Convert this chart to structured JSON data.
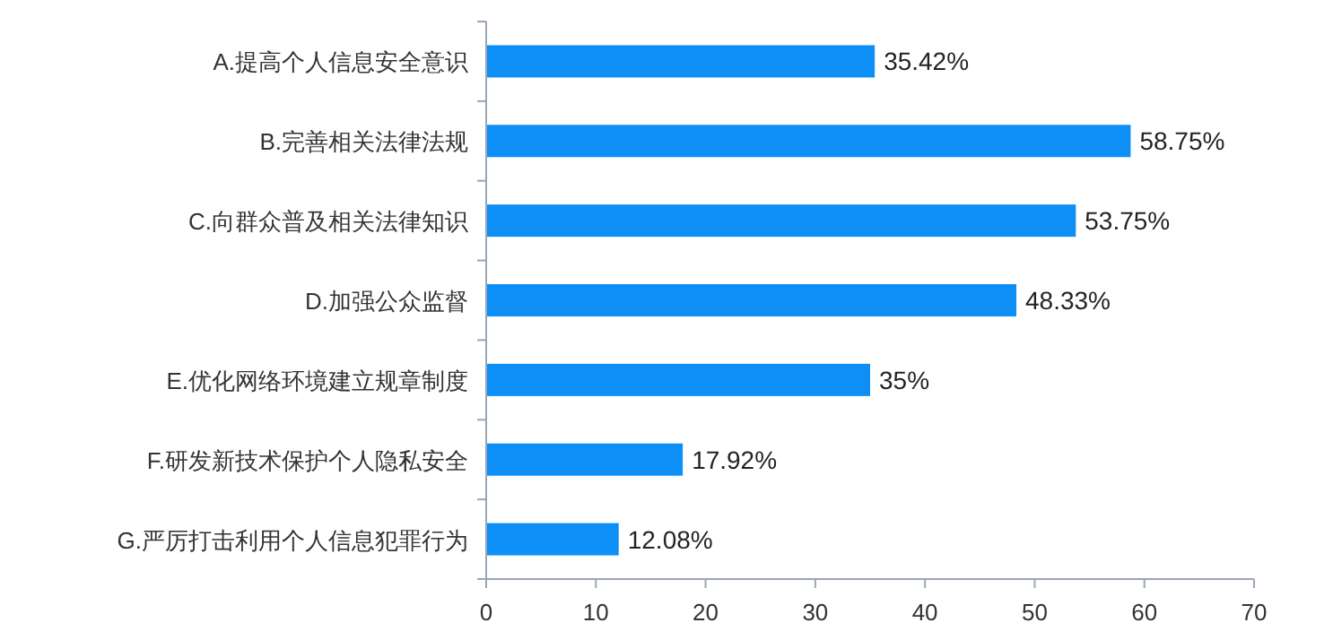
{
  "chart_data": {
    "type": "bar",
    "orientation": "horizontal",
    "categories": [
      "A.提高个人信息安全意识",
      "B.完善相关法律法规",
      "C.向群众普及相关法律知识",
      "D.加强公众监督",
      "E.优化网络环境建立规章制度",
      "F.研发新技术保护个人隐私安全",
      "G.严厉打击利用个人信息犯罪行为"
    ],
    "values": [
      35.42,
      58.75,
      53.75,
      48.33,
      35,
      17.92,
      12.08
    ],
    "value_labels": [
      "35.42%",
      "58.75%",
      "53.75%",
      "48.33%",
      "35%",
      "17.92%",
      "12.08%"
    ],
    "color": "#0d8ff5",
    "xlim": [
      0,
      70
    ],
    "xticks": [
      0,
      10,
      20,
      30,
      40,
      50,
      60,
      70
    ]
  }
}
